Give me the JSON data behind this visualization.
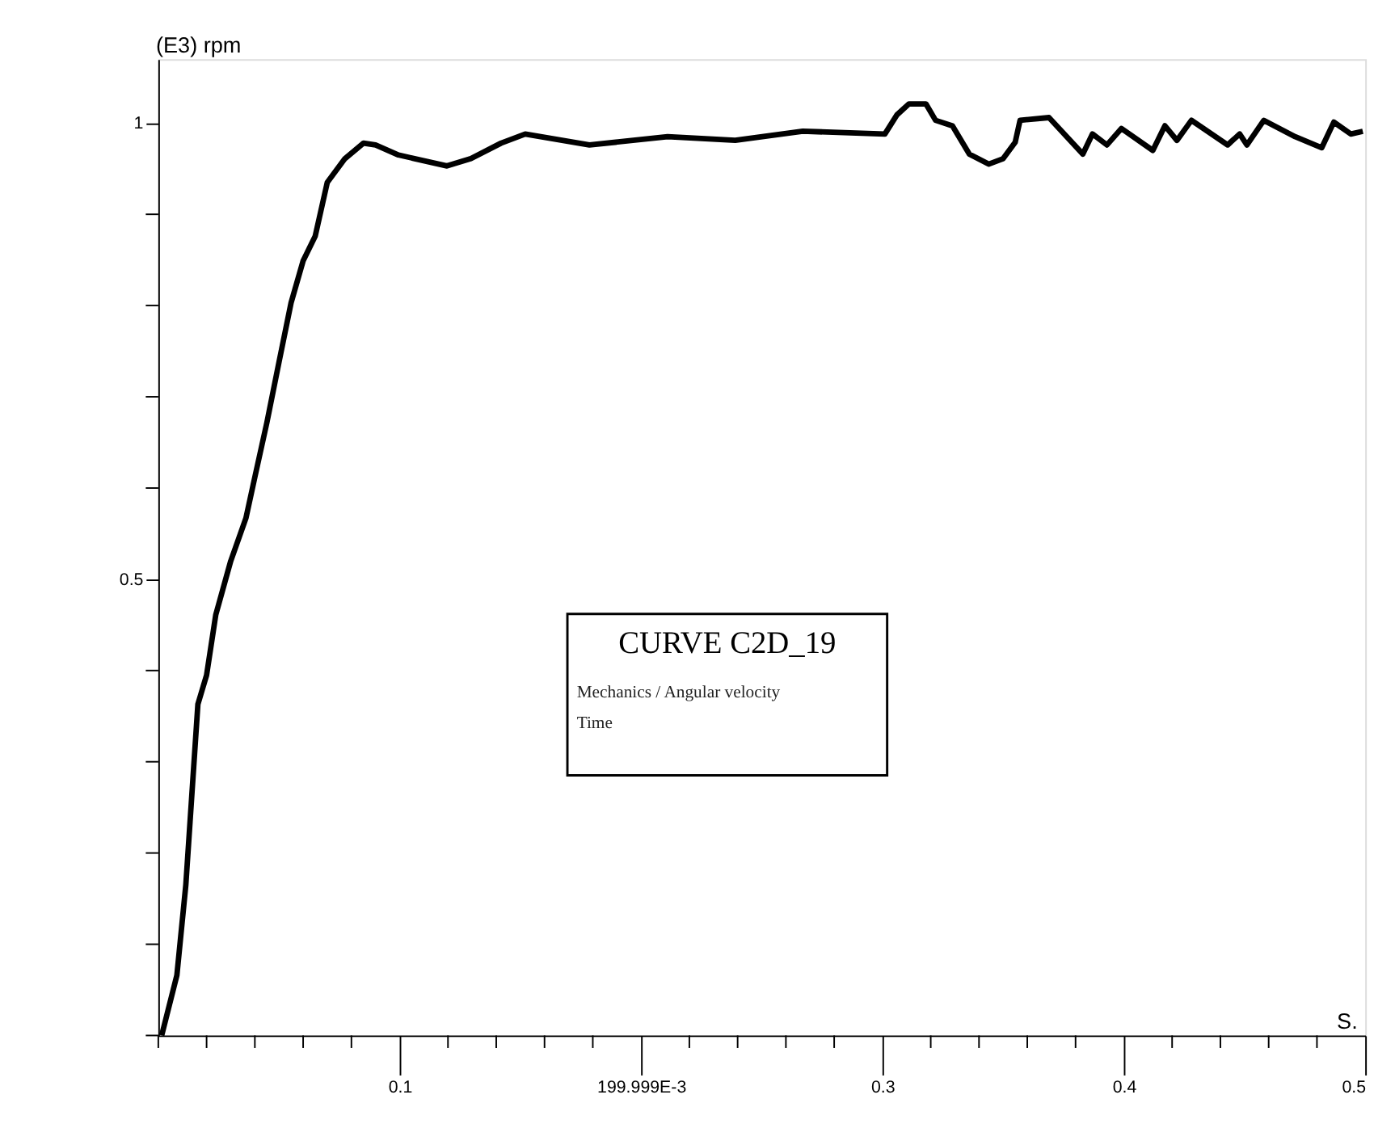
{
  "chart_data": {
    "type": "line",
    "ylabel": "(E3) rpm",
    "xlabel": "S.",
    "annotations": [
      "CURVE C2D_19",
      "Mechanics / Angular velocity",
      "Time"
    ],
    "xlim": [
      0,
      0.5
    ],
    "ylim": [
      0,
      1.07
    ],
    "xticks": [
      {
        "value": 0,
        "label": null
      },
      {
        "value": 0.02,
        "label": null
      },
      {
        "value": 0.04,
        "label": null
      },
      {
        "value": 0.06,
        "label": null
      },
      {
        "value": 0.08,
        "label": null
      },
      0.1,
      {
        "value": 0.12,
        "label": null
      },
      {
        "value": 0.14,
        "label": null
      },
      {
        "value": 0.16,
        "label": null
      },
      {
        "value": 0.18,
        "label": null
      },
      {
        "value": 0.199999,
        "label": "199.999E-3"
      },
      {
        "value": 0.22,
        "label": null
      },
      {
        "value": 0.24,
        "label": null
      },
      {
        "value": 0.26,
        "label": null
      },
      {
        "value": 0.28,
        "label": null
      },
      0.3,
      {
        "value": 0.32,
        "label": null
      },
      {
        "value": 0.34,
        "label": null
      },
      {
        "value": 0.36,
        "label": null
      },
      {
        "value": 0.38,
        "label": null
      },
      0.4,
      {
        "value": 0.42,
        "label": null
      },
      {
        "value": 0.44,
        "label": null
      },
      {
        "value": 0.46,
        "label": null
      },
      {
        "value": 0.48,
        "label": null
      },
      0.5
    ],
    "yticks": [
      {
        "value": 0,
        "label": null
      },
      {
        "value": 0.1,
        "label": null
      },
      {
        "value": 0.2,
        "label": null
      },
      {
        "value": 0.3,
        "label": null
      },
      {
        "value": 0.4,
        "label": null
      },
      0.5,
      {
        "value": 0.6,
        "label": null
      },
      {
        "value": 0.7,
        "label": null
      },
      {
        "value": 0.8,
        "label": null
      },
      {
        "value": 0.9,
        "label": null
      },
      1
    ],
    "grid": false,
    "marker": "none",
    "line_style": "solid",
    "series": [
      {
        "color": "#000000",
        "x": [
          0.0014,
          0.0077,
          0.0114,
          0.0139,
          0.0164,
          0.02,
          0.0238,
          0.03,
          0.0363,
          0.04,
          0.045,
          0.05,
          0.055,
          0.06,
          0.065,
          0.07,
          0.0773,
          0.085,
          0.09,
          0.0995,
          0.1196,
          0.1295,
          0.142,
          0.152,
          0.1786,
          0.211,
          0.239,
          0.267,
          0.301,
          0.306,
          0.311,
          0.318,
          0.322,
          0.329,
          0.336,
          0.344,
          0.35,
          0.355,
          0.357,
          0.369,
          0.383,
          0.387,
          0.393,
          0.399,
          0.412,
          0.417,
          0.422,
          0.428,
          0.443,
          0.448,
          0.451,
          0.458,
          0.471,
          0.482,
          0.487,
          0.494,
          0.499
        ],
        "values": [
          0.0,
          0.066,
          0.165,
          0.264,
          0.363,
          0.395,
          0.461,
          0.52,
          0.567,
          0.612,
          0.672,
          0.738,
          0.803,
          0.849,
          0.876,
          0.935,
          0.961,
          0.978,
          0.976,
          0.965,
          0.953,
          0.961,
          0.978,
          0.988,
          0.976,
          0.985,
          0.981,
          0.991,
          0.988,
          1.009,
          1.021,
          1.021,
          1.003,
          0.997,
          0.966,
          0.955,
          0.961,
          0.979,
          1.003,
          1.006,
          0.966,
          0.988,
          0.976,
          0.994,
          0.97,
          0.997,
          0.981,
          1.003,
          0.976,
          0.988,
          0.976,
          1.003,
          0.985,
          0.973,
          1.001,
          0.988,
          0.991
        ]
      }
    ]
  }
}
